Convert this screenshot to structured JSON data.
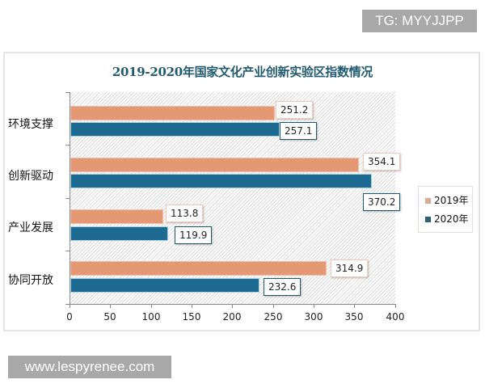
{
  "watermarks": {
    "top": "TG: MYYJJPP",
    "bottom": "www.lespyrenee.com"
  },
  "colors": {
    "series_2019": "#e59874",
    "series_2020": "#1e6a91",
    "title": "#1f5a6e"
  },
  "chart_data": {
    "type": "bar",
    "orientation": "horizontal",
    "title": "2019-2020年国家文化产业创新实验区指数情况",
    "categories": [
      "环境支撑",
      "创新驱动",
      "产业发展",
      "协同开放"
    ],
    "series": [
      {
        "name": "2019年",
        "values": [
          251.2,
          354.1,
          113.8,
          314.9
        ]
      },
      {
        "name": "2020年",
        "values": [
          257.1,
          370.2,
          119.9,
          232.6
        ]
      }
    ],
    "xlabel": "",
    "ylabel": "",
    "xlim": [
      0,
      400
    ],
    "x_ticks": [
      "0",
      "50",
      "100",
      "150",
      "200",
      "250",
      "300",
      "350",
      "400"
    ],
    "legend_position": "right",
    "grid": false,
    "data_labels": true
  },
  "labels": {
    "values_2019": [
      "251.2",
      "354.1",
      "113.8",
      "314.9"
    ],
    "values_2020": [
      "257.1",
      "370.2",
      "119.9",
      "232.6"
    ]
  }
}
